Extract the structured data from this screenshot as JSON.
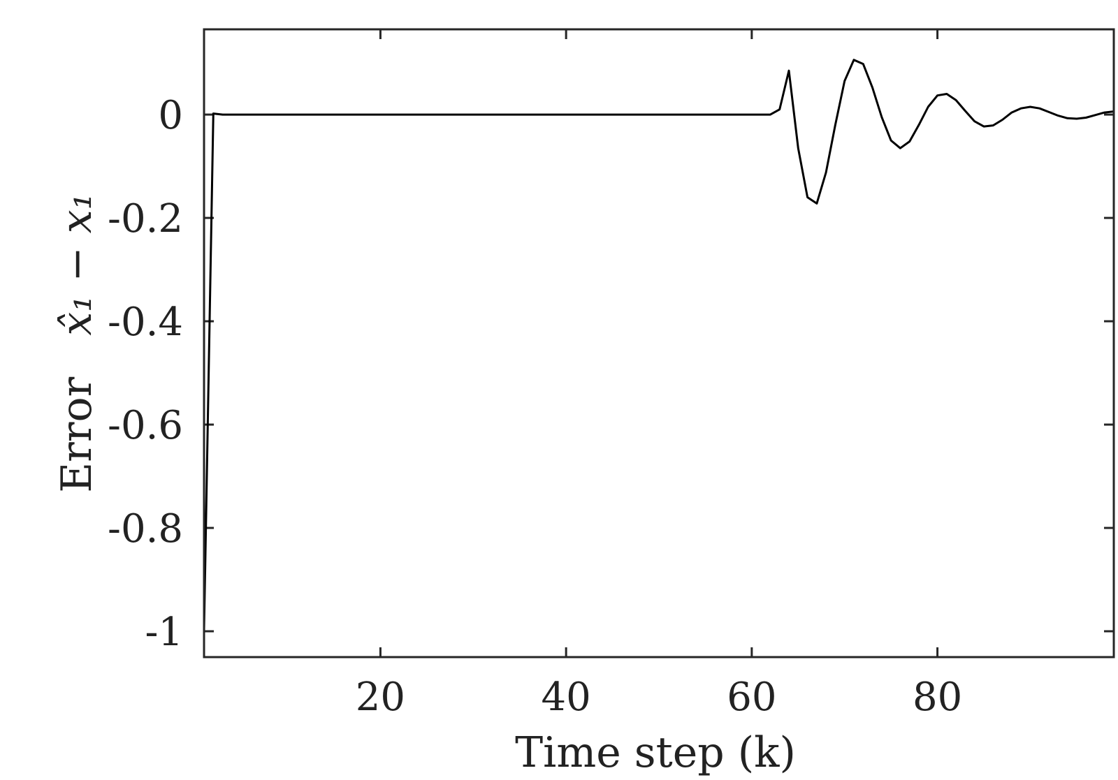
{
  "chart_data": {
    "type": "line",
    "xlabel": "Time step (k)",
    "ylabel": "Error   x̂₁ − x₁",
    "ylabel_parts": {
      "word": "Error",
      "math": "x̂₁ − x₁"
    },
    "xlim": [
      1,
      99
    ],
    "ylim": [
      -1.05,
      0.165
    ],
    "xticks": [
      20,
      40,
      60,
      80
    ],
    "xtick_labels": [
      "20",
      "40",
      "60",
      "80"
    ],
    "yticks": [
      0,
      -0.2,
      -0.4,
      -0.6,
      -0.8,
      -1
    ],
    "ytick_labels": [
      "0",
      "-0.2",
      "-0.4",
      "-0.6",
      "-0.8",
      "-1"
    ],
    "grid": false,
    "box": true,
    "series": [
      {
        "color": "#000000",
        "x": [
          1,
          2,
          3,
          4,
          5,
          6,
          7,
          8,
          9,
          10,
          15,
          20,
          25,
          30,
          35,
          40,
          45,
          50,
          55,
          60,
          62,
          63,
          64,
          65,
          66,
          67,
          68,
          69,
          70,
          71,
          72,
          73,
          74,
          75,
          76,
          77,
          78,
          79,
          80,
          81,
          82,
          83,
          84,
          85,
          86,
          87,
          88,
          89,
          90,
          91,
          92,
          93,
          94,
          95,
          96,
          97,
          98,
          99
        ],
        "y": [
          -1.0,
          0.002,
          0.0,
          0.0,
          0.0,
          0.0,
          0.0,
          0.0,
          0.0,
          0.0,
          0.0,
          0.0,
          0.0,
          0.0,
          0.0,
          0.0,
          0.0,
          0.0,
          0.0,
          0.0,
          0.0,
          0.01,
          0.085,
          -0.065,
          -0.16,
          -0.172,
          -0.112,
          -0.02,
          0.065,
          0.106,
          0.098,
          0.052,
          -0.005,
          -0.05,
          -0.065,
          -0.052,
          -0.02,
          0.015,
          0.037,
          0.04,
          0.028,
          0.007,
          -0.013,
          -0.023,
          -0.021,
          -0.01,
          0.004,
          0.012,
          0.015,
          0.012,
          0.005,
          -0.002,
          -0.007,
          -0.008,
          -0.006,
          -0.001,
          0.004,
          0.006
        ]
      }
    ]
  }
}
